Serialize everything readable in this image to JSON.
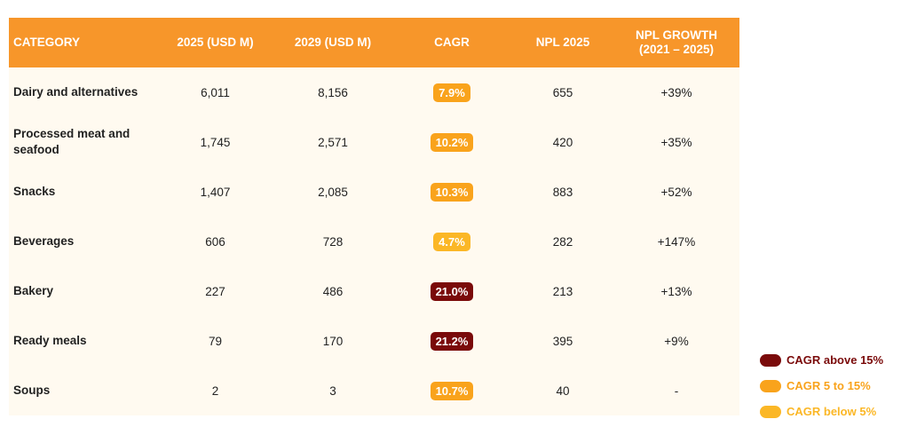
{
  "colors": {
    "header_bg": "#f7962a",
    "body_bg": "#fffaf0",
    "cagr_above_15": "#7a0a0a",
    "cagr_5_to_15": "#f9a31c",
    "cagr_below_5": "#fbb726"
  },
  "table": {
    "headers": [
      "CATEGORY",
      "2025 (USD M)",
      "2029 (USD M)",
      "CAGR",
      "NPL 2025",
      "NPL GROWTH\n(2021 – 2025)"
    ],
    "rows": [
      {
        "category": "Dairy and alternatives",
        "v2025": "6,011",
        "v2029": "8,156",
        "cagr": "7.9%",
        "cagr_band": "mid",
        "npl": "655",
        "npl_growth": "+39%"
      },
      {
        "category": "Processed meat and seafood",
        "v2025": "1,745",
        "v2029": "2,571",
        "cagr": "10.2%",
        "cagr_band": "mid",
        "npl": "420",
        "npl_growth": "+35%"
      },
      {
        "category": "Snacks",
        "v2025": "1,407",
        "v2029": "2,085",
        "cagr": "10.3%",
        "cagr_band": "mid",
        "npl": "883",
        "npl_growth": "+52%"
      },
      {
        "category": "Beverages",
        "v2025": "606",
        "v2029": "728",
        "cagr": "4.7%",
        "cagr_band": "below",
        "npl": "282",
        "npl_growth": "+147%"
      },
      {
        "category": "Bakery",
        "v2025": "227",
        "v2029": "486",
        "cagr": "21.0%",
        "cagr_band": "above",
        "npl": "213",
        "npl_growth": "+13%"
      },
      {
        "category": "Ready meals",
        "v2025": "79",
        "v2029": "170",
        "cagr": "21.2%",
        "cagr_band": "above",
        "npl": "395",
        "npl_growth": "+9%"
      },
      {
        "category": "Soups",
        "v2025": "2",
        "v2029": "3",
        "cagr": "10.7%",
        "cagr_band": "mid",
        "npl": "40",
        "npl_growth": "-"
      }
    ]
  },
  "legend": [
    {
      "label": "CAGR above 15%",
      "band": "above",
      "text_color": "#7a0a0a"
    },
    {
      "label": "CAGR 5 to 15%",
      "band": "mid",
      "text_color": "#f9a31c"
    },
    {
      "label": "CAGR below 5%",
      "band": "below",
      "text_color": "#fbb726"
    }
  ]
}
